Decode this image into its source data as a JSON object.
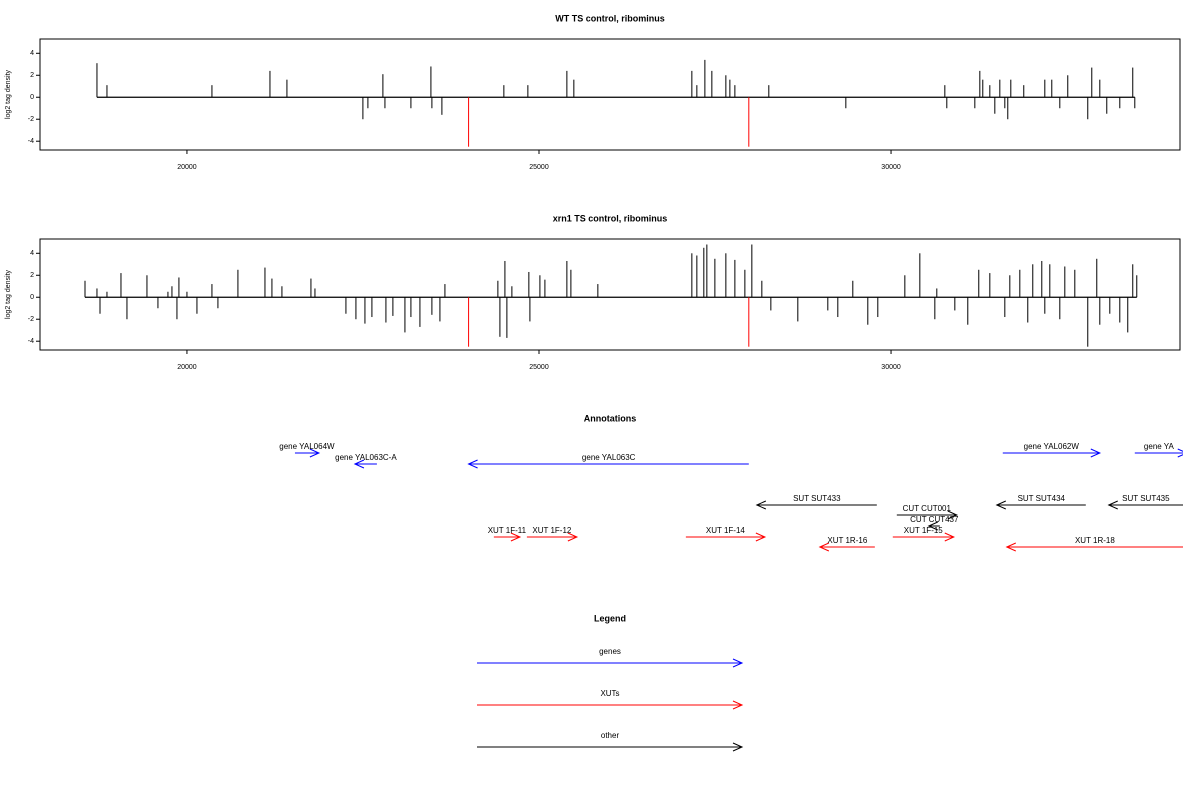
{
  "chart_data": [
    {
      "type": "needle",
      "title": "WT TS control, ribominus",
      "ylabel": "log2 tag density",
      "xlim": [
        17913,
        34104
      ],
      "ylim": [
        -4.8,
        5.3
      ],
      "xticks": [
        20000,
        25000,
        30000
      ],
      "yticks": [
        -4,
        -2,
        0,
        2,
        4
      ],
      "series": [
        {
          "color": "#000000",
          "x": [
            18722,
            18864,
            20355,
            21179,
            21420,
            22499,
            22570,
            22783,
            22812,
            23181,
            23465,
            23479,
            23621,
            24501,
            24842,
            25396,
            25495,
            27171,
            27242,
            27356,
            27455,
            27654,
            27711,
            27782,
            28264,
            29358,
            30764,
            30792,
            31190,
            31261,
            31303,
            31403,
            31474,
            31545,
            31616,
            31658,
            31701,
            31885,
            32184,
            32283,
            32397,
            32510,
            32794,
            32851,
            32965,
            33064,
            33249,
            33433,
            33462
          ],
          "values": [
            3.1,
            1.1,
            1.1,
            2.4,
            1.6,
            -2.0,
            -1.0,
            2.1,
            -1.0,
            -1.0,
            2.8,
            -1.0,
            -1.6,
            1.1,
            1.1,
            2.4,
            1.6,
            2.4,
            1.1,
            3.4,
            2.4,
            2.0,
            1.6,
            1.1,
            1.1,
            -1.0,
            1.1,
            -1.0,
            -1.0,
            2.4,
            1.6,
            1.1,
            -1.5,
            1.6,
            -1.0,
            -2.0,
            1.6,
            1.1,
            1.6,
            1.6,
            -1.0,
            2.0,
            -2.0,
            2.7,
            1.6,
            -1.5,
            -1.0,
            2.7,
            -1.0
          ]
        },
        {
          "color": "#ff0000",
          "x": [
            24000,
            27980
          ],
          "values": [
            -4.5,
            -4.5
          ]
        }
      ]
    },
    {
      "type": "needle",
      "title": "xrn1 TS control, ribominus",
      "ylabel": "log2 tag density",
      "xlim": [
        17913,
        34104
      ],
      "ylim": [
        -4.8,
        5.3
      ],
      "xticks": [
        20000,
        25000,
        30000
      ],
      "yticks": [
        -4,
        -2,
        0,
        2,
        4
      ],
      "series": [
        {
          "color": "#000000",
          "x": [
            18552,
            18722,
            18765,
            18864,
            19063,
            19148,
            19432,
            19588,
            19730,
            19787,
            19858,
            19886,
            20000,
            20142,
            20355,
            20440,
            20724,
            21108,
            21207,
            21349,
            21761,
            21818,
            22258,
            22400,
            22528,
            22627,
            22826,
            22925,
            23096,
            23181,
            23309,
            23479,
            23593,
            23664,
            24416,
            24445,
            24516,
            24544,
            24615,
            24856,
            24871,
            25013,
            25084,
            25396,
            25453,
            25836,
            27171,
            27242,
            27341,
            27384,
            27498,
            27654,
            27782,
            27924,
            28023,
            28165,
            28293,
            28676,
            29102,
            29244,
            29457,
            29670,
            29812,
            30196,
            30409,
            30622,
            30650,
            30906,
            31090,
            31246,
            31403,
            31616,
            31687,
            31829,
            31942,
            32013,
            32141,
            32184,
            32255,
            32397,
            32468,
            32610,
            32794,
            32922,
            32965,
            33107,
            33249,
            33362,
            33433,
            33490
          ],
          "values": [
            1.5,
            0.8,
            -1.5,
            0.5,
            2.2,
            -2.0,
            2.0,
            -1.0,
            0.5,
            1.0,
            -2.0,
            1.8,
            0.5,
            -1.5,
            1.2,
            -1.0,
            2.5,
            2.7,
            1.7,
            1.0,
            1.7,
            0.8,
            -1.5,
            -2.0,
            -2.4,
            -1.8,
            -2.3,
            -1.7,
            -3.2,
            -1.8,
            -2.7,
            -1.6,
            -2.2,
            1.2,
            1.5,
            -3.6,
            3.3,
            -3.7,
            1.0,
            2.3,
            -2.2,
            2.0,
            1.6,
            3.3,
            2.5,
            1.2,
            4.0,
            3.8,
            4.5,
            4.8,
            3.5,
            4.0,
            3.4,
            2.5,
            4.8,
            1.5,
            -1.2,
            -2.2,
            -1.2,
            -1.8,
            1.5,
            -2.5,
            -1.8,
            2.0,
            4.0,
            -2.0,
            0.8,
            -1.2,
            -2.5,
            2.5,
            2.2,
            -1.8,
            2.0,
            2.5,
            -2.3,
            3.0,
            3.3,
            -1.5,
            3.0,
            -2.0,
            2.8,
            2.5,
            -4.5,
            3.5,
            -2.5,
            -1.5,
            -2.3,
            -3.2,
            3.0,
            2.0
          ]
        },
        {
          "color": "#ff0000",
          "x": [
            24000,
            27980
          ],
          "values": [
            -4.5,
            -4.5
          ]
        }
      ]
    }
  ],
  "annotations": {
    "title": "Annotations",
    "features": [
      {
        "label": "gene YAL064W",
        "start": 21534,
        "end": 21874,
        "strand": "+",
        "color": "#0000ff"
      },
      {
        "label": "gene YAL063C-A",
        "start": 22386,
        "end": 22698,
        "strand": "-",
        "color": "#0000ff"
      },
      {
        "label": "gene YAL063C",
        "start": 24000,
        "end": 27980,
        "strand": "-",
        "color": "#0000ff"
      },
      {
        "label": "gene YAL062W",
        "start": 31587,
        "end": 32965,
        "strand": "+",
        "color": "#0000ff"
      },
      {
        "label": "gene YA",
        "start": 33462,
        "end": 34200,
        "strand": "+",
        "color": "#0000ff"
      },
      {
        "label": "SUT SUT433",
        "start": 28094,
        "end": 29798,
        "strand": "-",
        "color": "#000000"
      },
      {
        "label": "CUT CUT001",
        "start": 30082,
        "end": 30934,
        "strand": "+",
        "color": "#000000"
      },
      {
        "label": "CUT CUT437",
        "start": 30536,
        "end": 30693,
        "strand": "-",
        "color": "#000000"
      },
      {
        "label": "SUT SUT434",
        "start": 31502,
        "end": 32766,
        "strand": "-",
        "color": "#000000"
      },
      {
        "label": "SUT SUT435",
        "start": 33092,
        "end": 34150,
        "strand": "-",
        "color": "#000000"
      },
      {
        "label": "XUT 1F-11",
        "start": 24359,
        "end": 24729,
        "strand": "+",
        "color": "#ff0000"
      },
      {
        "label": "XUT 1F-12",
        "start": 24828,
        "end": 25538,
        "strand": "+",
        "color": "#ff0000"
      },
      {
        "label": "XUT 1F-14",
        "start": 27086,
        "end": 28208,
        "strand": "+",
        "color": "#ff0000"
      },
      {
        "label": "XUT 1R-16",
        "start": 28989,
        "end": 29770,
        "strand": "-",
        "color": "#ff0000"
      },
      {
        "label": "XUT 1F-15",
        "start": 30025,
        "end": 30891,
        "strand": "+",
        "color": "#ff0000"
      },
      {
        "label": "XUT 1R-18",
        "start": 31644,
        "end": 34150,
        "strand": "-",
        "color": "#ff0000"
      }
    ]
  },
  "legend": {
    "title": "Legend",
    "entries": [
      {
        "label": "genes",
        "color": "#0000ff"
      },
      {
        "label": "XUTs",
        "color": "#ff0000"
      },
      {
        "label": "other",
        "color": "#000000"
      }
    ]
  }
}
